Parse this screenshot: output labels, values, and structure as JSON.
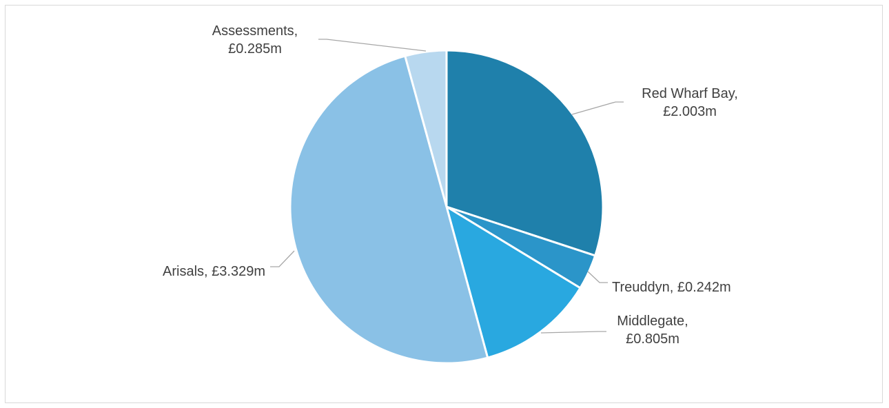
{
  "chart_data": {
    "type": "pie",
    "title": "",
    "start_angle_deg": 0,
    "direction": "clockwise",
    "slices": [
      {
        "name": "Red Wharf Bay",
        "value": 2.003,
        "label_lines": [
          "Red Wharf Bay,",
          "£2.003m"
        ],
        "color": "#1f80ab"
      },
      {
        "name": "Treuddyn",
        "value": 0.242,
        "label_lines": [
          "Treuddyn, £0.242m"
        ],
        "color": "#2b95c9"
      },
      {
        "name": "Middlegate",
        "value": 0.805,
        "label_lines": [
          "Middlegate,",
          "£0.805m"
        ],
        "color": "#29a8e0"
      },
      {
        "name": "Arisals",
        "value": 3.329,
        "label_lines": [
          "Arisals, £3.329m"
        ],
        "color": "#8ac1e6"
      },
      {
        "name": "Assessments",
        "value": 0.285,
        "label_lines": [
          "Assessments,",
          "£0.285m"
        ],
        "color": "#b8d8ef"
      }
    ],
    "legend": "none"
  }
}
